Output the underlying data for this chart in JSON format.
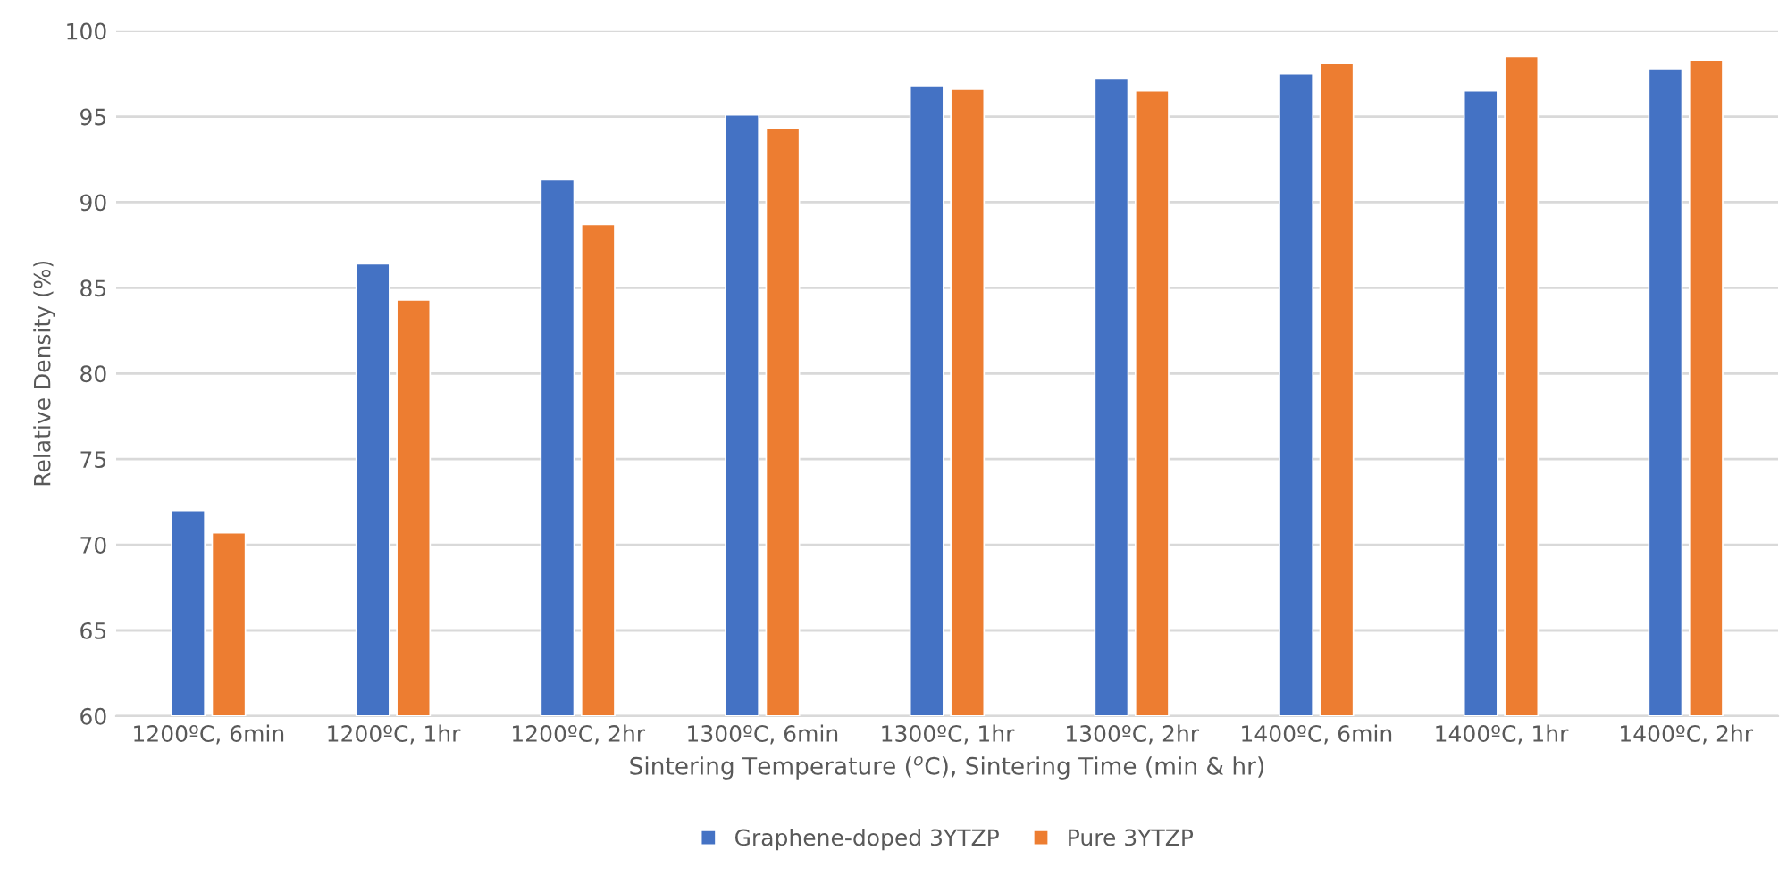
{
  "chart_data": {
    "type": "bar",
    "categories": [
      "1200ºC, 6min",
      "1200ºC, 1hr",
      "1200ºC, 2hr",
      "1300ºC, 6min",
      "1300ºC, 1hr",
      "1300ºC, 2hr",
      "1400ºC, 6min",
      "1400ºC, 1hr",
      "1400ºC, 2hr"
    ],
    "series": [
      {
        "name": "Graphene-doped 3YTZP",
        "color": "#4472c4",
        "values": [
          72.0,
          86.4,
          91.3,
          95.1,
          96.8,
          97.2,
          97.5,
          96.5,
          97.8
        ]
      },
      {
        "name": "Pure 3YTZP",
        "color": "#ed7d31",
        "values": [
          70.7,
          84.3,
          88.7,
          94.3,
          96.6,
          96.5,
          98.1,
          98.5,
          98.3
        ]
      }
    ],
    "xlabel": "Sintering Temperature ($^{o}$C), Sintering Time (min & hr)",
    "ylabel": "Relative Density (%)",
    "ylim": [
      60,
      100
    ],
    "yticks": [
      60,
      65,
      70,
      75,
      80,
      85,
      90,
      95,
      100
    ],
    "grid": "y",
    "legend": "bottom"
  }
}
